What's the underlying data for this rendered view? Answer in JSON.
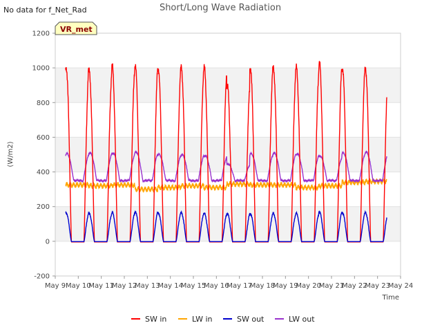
{
  "chart_data": {
    "type": "line",
    "title": "Short/Long Wave Radiation",
    "note": "No data for f_Net_Rad",
    "badge": "VR_met",
    "xlabel": "Time",
    "ylabel": "(W/m2)",
    "ylim": [
      -200,
      1200
    ],
    "yticks": [
      -200,
      0,
      200,
      400,
      600,
      800,
      1000,
      1200
    ],
    "xlim": [
      9,
      24
    ],
    "xticks": [
      {
        "value": 9,
        "label": "May 9"
      },
      {
        "value": 10,
        "label": "May 10"
      },
      {
        "value": 11,
        "label": "May 11"
      },
      {
        "value": 12,
        "label": "May 12"
      },
      {
        "value": 13,
        "label": "May 13"
      },
      {
        "value": 14,
        "label": "May 14"
      },
      {
        "value": 15,
        "label": "May 15"
      },
      {
        "value": 16,
        "label": "May 16"
      },
      {
        "value": 17,
        "label": "May 17"
      },
      {
        "value": 18,
        "label": "May 18"
      },
      {
        "value": 19,
        "label": "May 19"
      },
      {
        "value": 20,
        "label": "May 20"
      },
      {
        "value": 21,
        "label": "May 21"
      },
      {
        "value": 22,
        "label": "May 22"
      },
      {
        "value": 23,
        "label": "May 23"
      },
      {
        "value": 24,
        "label": "May 24"
      }
    ],
    "grid": true,
    "legend_position": "bottom",
    "series": [
      {
        "name": "SW in",
        "color": "#ff0000",
        "daily_peaks": [
          1005,
          985,
          1010,
          1015,
          1000,
          1005,
          1000,
          900,
          1005,
          1005,
          1000,
          1030,
          1000,
          1000
        ]
      },
      {
        "name": "LW in",
        "color": "#ffa500",
        "daily_levels": [
          325,
          320,
          325,
          300,
          310,
          320,
          310,
          330,
          325,
          325,
          310,
          320,
          340,
          345
        ]
      },
      {
        "name": "SW out",
        "color": "#0000cc",
        "daily_peaks": [
          165,
          160,
          165,
          170,
          165,
          165,
          160,
          160,
          160,
          160,
          160,
          170,
          165,
          165
        ]
      },
      {
        "name": "LW out",
        "color": "#9932cc",
        "daily_peaks": [
          505,
          510,
          510,
          515,
          500,
          500,
          495,
          445,
          505,
          510,
          505,
          490,
          510,
          515
        ],
        "night_level": 350
      }
    ],
    "x_range": [
      9.45,
      23.4
    ]
  }
}
